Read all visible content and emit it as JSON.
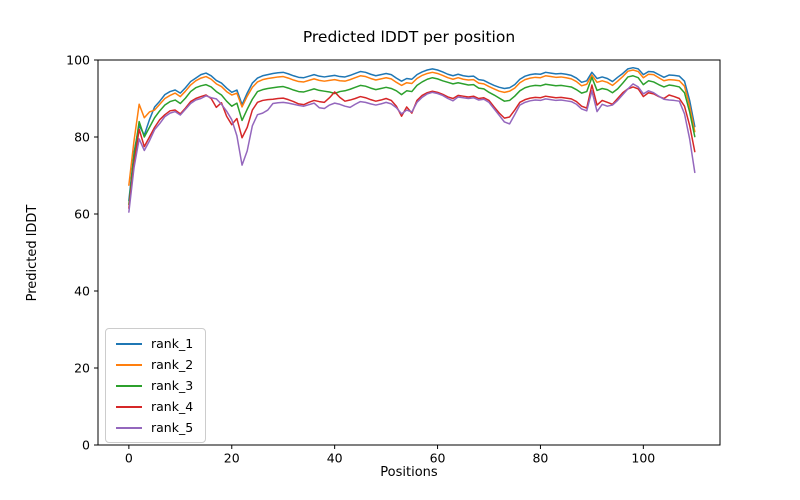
{
  "figure": {
    "title": "Predicted lDDT per position",
    "xlabel": "Positions",
    "ylabel": "Predicted lDDT"
  },
  "chart_data": {
    "type": "line",
    "title": "Predicted lDDT per position",
    "xlabel": "Positions",
    "ylabel": "Predicted lDDT",
    "xlim": [
      -6,
      114.9
    ],
    "ylim": [
      0,
      100
    ],
    "xticks": [
      0,
      20,
      40,
      60,
      80,
      100
    ],
    "yticks": [
      0,
      20,
      40,
      60,
      80,
      100
    ],
    "grid": false,
    "legend_position": "lower left",
    "line_width": 1.5,
    "x": [
      0,
      1,
      2,
      3,
      4,
      5,
      6,
      7,
      8,
      9,
      10,
      11,
      12,
      13,
      14,
      15,
      16,
      17,
      18,
      19,
      20,
      21,
      22,
      23,
      24,
      25,
      26,
      27,
      28,
      29,
      30,
      31,
      32,
      33,
      34,
      35,
      36,
      37,
      38,
      39,
      40,
      41,
      42,
      43,
      44,
      45,
      46,
      47,
      48,
      49,
      50,
      51,
      52,
      53,
      54,
      55,
      56,
      57,
      58,
      59,
      60,
      61,
      62,
      63,
      64,
      65,
      66,
      67,
      68,
      69,
      70,
      71,
      72,
      73,
      74,
      75,
      76,
      77,
      78,
      79,
      80,
      81,
      82,
      83,
      84,
      85,
      86,
      87,
      88,
      89,
      90,
      91,
      92,
      93,
      94,
      95,
      96,
      97,
      98,
      99,
      100,
      101,
      102,
      103,
      104,
      105,
      106,
      107,
      108,
      109,
      110
    ],
    "series": [
      {
        "name": "rank_1",
        "color": "#1f77b4",
        "values": [
          63.5,
          76.0,
          83.0,
          80.5,
          84.5,
          87.8,
          89.3,
          91.0,
          91.8,
          92.2,
          91.4,
          92.8,
          94.4,
          95.3,
          96.2,
          96.6,
          95.9,
          94.7,
          94.0,
          92.7,
          91.6,
          92.2,
          88.4,
          91.4,
          94.0,
          95.3,
          95.9,
          96.2,
          96.5,
          96.7,
          96.8,
          96.4,
          95.9,
          95.5,
          95.4,
          95.8,
          96.2,
          95.8,
          95.6,
          95.8,
          96.0,
          95.7,
          95.6,
          96.0,
          96.5,
          97.0,
          96.8,
          96.3,
          95.9,
          96.2,
          96.5,
          96.2,
          95.3,
          94.5,
          95.2,
          95.0,
          96.2,
          96.9,
          97.4,
          97.7,
          97.4,
          96.9,
          96.3,
          95.9,
          96.3,
          95.9,
          95.7,
          95.8,
          94.9,
          94.7,
          94.0,
          93.4,
          92.9,
          92.6,
          92.8,
          93.6,
          95.0,
          95.8,
          96.2,
          96.4,
          96.3,
          96.8,
          96.6,
          96.4,
          96.5,
          96.3,
          96.0,
          95.3,
          94.2,
          94.6,
          96.8,
          95.2,
          95.6,
          95.2,
          94.4,
          95.5,
          96.5,
          97.7,
          98.0,
          97.7,
          96.2,
          97.0,
          96.9,
          96.2,
          95.5,
          96.1,
          96.0,
          95.8,
          94.5,
          89.5,
          82.7
        ]
      },
      {
        "name": "rank_2",
        "color": "#ff7f0e",
        "values": [
          67.5,
          79.0,
          88.5,
          85.0,
          86.5,
          87.0,
          88.5,
          90.0,
          90.8,
          91.4,
          90.5,
          91.9,
          93.5,
          94.6,
          95.3,
          95.7,
          95.0,
          93.8,
          93.1,
          91.8,
          90.9,
          91.4,
          87.8,
          90.6,
          92.9,
          94.3,
          94.9,
          95.2,
          95.4,
          95.6,
          95.7,
          95.3,
          94.8,
          94.4,
          94.3,
          94.7,
          95.1,
          94.7,
          94.5,
          94.7,
          94.9,
          94.6,
          94.5,
          94.9,
          95.4,
          95.9,
          95.7,
          95.2,
          94.8,
          95.1,
          95.4,
          95.1,
          94.2,
          93.4,
          94.1,
          93.9,
          95.2,
          96.0,
          96.5,
          96.8,
          96.5,
          96.0,
          95.4,
          95.0,
          95.4,
          95.0,
          94.8,
          94.9,
          94.0,
          93.8,
          93.1,
          92.5,
          91.9,
          91.6,
          91.9,
          92.7,
          94.1,
          94.9,
          95.3,
          95.5,
          95.4,
          95.9,
          95.7,
          95.5,
          95.6,
          95.4,
          95.1,
          94.4,
          93.3,
          93.7,
          96.1,
          94.2,
          94.6,
          94.2,
          93.4,
          94.5,
          95.7,
          97.1,
          97.4,
          97.0,
          95.4,
          96.3,
          96.2,
          95.4,
          94.6,
          94.9,
          94.8,
          94.6,
          93.2,
          88.0,
          81.4
        ]
      },
      {
        "name": "rank_3",
        "color": "#2ca02c",
        "values": [
          62.5,
          75.0,
          84.0,
          80.0,
          82.5,
          85.0,
          86.8,
          88.3,
          89.2,
          89.6,
          88.7,
          90.1,
          91.8,
          92.8,
          93.3,
          93.6,
          93.0,
          91.8,
          90.9,
          89.3,
          88.0,
          88.8,
          84.3,
          87.2,
          89.8,
          91.8,
          92.3,
          92.6,
          92.8,
          93.0,
          93.1,
          92.7,
          92.2,
          91.8,
          91.7,
          92.1,
          92.5,
          92.1,
          91.9,
          91.7,
          91.3,
          91.8,
          92.0,
          92.4,
          92.9,
          93.4,
          93.2,
          92.7,
          92.3,
          92.6,
          92.9,
          92.6,
          92.0,
          91.0,
          92.0,
          91.8,
          93.4,
          94.3,
          95.0,
          95.4,
          95.1,
          94.6,
          94.2,
          93.8,
          94.1,
          93.8,
          93.5,
          93.6,
          92.7,
          92.5,
          91.6,
          90.9,
          90.1,
          89.3,
          89.5,
          90.6,
          92.0,
          92.8,
          93.2,
          93.4,
          93.3,
          93.7,
          93.5,
          93.3,
          93.4,
          93.2,
          93.0,
          92.3,
          91.4,
          91.8,
          95.5,
          92.1,
          92.6,
          92.3,
          91.5,
          92.5,
          94.0,
          95.6,
          95.9,
          95.4,
          93.6,
          94.6,
          94.3,
          93.6,
          93.0,
          93.5,
          93.3,
          93.0,
          91.5,
          86.5,
          80.1
        ]
      },
      {
        "name": "rank_4",
        "color": "#d62728",
        "values": [
          61.5,
          73.0,
          82.0,
          77.5,
          80.0,
          82.5,
          84.5,
          85.8,
          86.8,
          87.0,
          86.0,
          87.5,
          89.2,
          90.0,
          90.5,
          90.9,
          90.0,
          87.7,
          88.9,
          85.4,
          83.2,
          84.8,
          79.8,
          82.5,
          87.0,
          89.0,
          89.5,
          89.7,
          89.8,
          90.0,
          90.1,
          89.7,
          89.2,
          88.6,
          88.4,
          89.0,
          89.5,
          89.2,
          89.0,
          90.2,
          91.7,
          90.3,
          89.3,
          89.6,
          90.0,
          90.5,
          90.2,
          89.7,
          89.3,
          89.6,
          90.0,
          89.5,
          88.0,
          85.4,
          87.8,
          86.2,
          89.5,
          90.8,
          91.5,
          91.9,
          91.6,
          91.1,
          90.4,
          90.0,
          90.8,
          90.6,
          90.4,
          90.6,
          90.0,
          90.2,
          89.5,
          87.8,
          86.2,
          84.9,
          85.2,
          87.0,
          89.0,
          89.7,
          90.1,
          90.3,
          90.2,
          90.6,
          90.4,
          90.2,
          90.3,
          90.1,
          89.9,
          89.2,
          88.0,
          87.5,
          93.5,
          88.3,
          89.5,
          89.0,
          88.5,
          90.0,
          91.5,
          92.5,
          93.0,
          92.5,
          90.5,
          91.5,
          91.2,
          90.5,
          90.0,
          90.9,
          90.5,
          90.0,
          88.0,
          83.0,
          76.2
        ]
      },
      {
        "name": "rank_5",
        "color": "#9467bd",
        "values": [
          60.5,
          72.0,
          79.5,
          76.5,
          79.0,
          81.9,
          83.5,
          85.3,
          86.2,
          86.6,
          85.7,
          87.2,
          88.7,
          89.6,
          90.0,
          90.7,
          90.2,
          89.9,
          88.5,
          86.7,
          84.5,
          80.3,
          72.7,
          76.4,
          82.9,
          85.8,
          86.2,
          87.0,
          88.7,
          88.9,
          89.0,
          88.8,
          88.5,
          88.2,
          88.0,
          88.4,
          88.8,
          87.6,
          87.4,
          88.3,
          88.8,
          88.5,
          88.0,
          87.7,
          88.5,
          89.2,
          89.0,
          88.6,
          88.3,
          88.6,
          89.0,
          88.6,
          87.6,
          86.0,
          87.0,
          86.5,
          89.0,
          90.3,
          91.2,
          91.6,
          91.3,
          90.8,
          90.0,
          89.4,
          90.4,
          90.2,
          90.0,
          90.2,
          89.6,
          89.8,
          89.0,
          87.3,
          85.6,
          83.9,
          83.4,
          85.8,
          88.3,
          89.0,
          89.4,
          89.6,
          89.5,
          89.9,
          89.7,
          89.5,
          89.6,
          89.4,
          89.2,
          88.5,
          87.3,
          86.8,
          92.0,
          86.6,
          88.5,
          88.0,
          88.3,
          89.5,
          91.0,
          92.5,
          93.8,
          93.0,
          91.2,
          92.0,
          91.5,
          90.6,
          89.8,
          89.6,
          89.5,
          89.3,
          86.0,
          79.5,
          70.8
        ]
      }
    ]
  }
}
